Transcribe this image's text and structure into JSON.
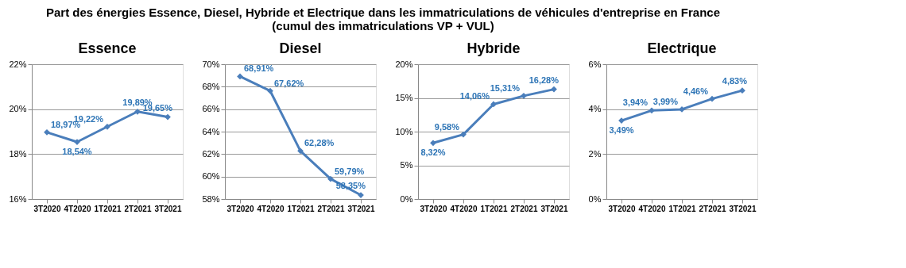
{
  "chart_data": [
    {
      "type": "line",
      "title": "Essence",
      "annotations": [
        "Part des énergies Essence, Diesel, Hybride et Electrique dans les immatriculations de véhicules d'entreprise en France",
        "(cumul des immatriculations VP + VUL)"
      ],
      "categories": [
        "3T2020",
        "4T2020",
        "1T2021",
        "2T2021",
        "3T2021"
      ],
      "series": [
        {
          "color": "#4a7ebb",
          "values": [
            18.97,
            18.54,
            19.22,
            19.89,
            19.65
          ],
          "value_labels": [
            "18,97%",
            "18,54%",
            "19,22%",
            "19,89%",
            "19,65%"
          ]
        }
      ],
      "ylim": [
        16,
        22
      ],
      "yticks": [
        {
          "value": 16,
          "label": "16%"
        },
        {
          "value": 18,
          "label": "18%"
        },
        {
          "value": 20,
          "label": "20%"
        },
        {
          "value": 22,
          "label": "22%"
        }
      ],
      "grid": "y",
      "marker": "diamond",
      "line_style": "solid",
      "legend": false
    },
    {
      "type": "line",
      "title": "Diesel",
      "categories": [
        "3T2020",
        "4T2020",
        "1T2021",
        "2T2021",
        "3T2021"
      ],
      "series": [
        {
          "color": "#4a7ebb",
          "values": [
            68.91,
            67.62,
            62.28,
            59.79,
            58.35
          ],
          "value_labels": [
            "68,91%",
            "67,62%",
            "62,28%",
            "59,79%",
            "58,35%"
          ]
        }
      ],
      "ylim": [
        58,
        70
      ],
      "yticks": [
        {
          "value": 58,
          "label": "58%"
        },
        {
          "value": 60,
          "label": "60%"
        },
        {
          "value": 62,
          "label": "62%"
        },
        {
          "value": 64,
          "label": "64%"
        },
        {
          "value": 66,
          "label": "66%"
        },
        {
          "value": 68,
          "label": "68%"
        },
        {
          "value": 70,
          "label": "70%"
        }
      ],
      "grid": "y",
      "marker": "diamond",
      "line_style": "solid",
      "legend": false
    },
    {
      "type": "line",
      "title": "Hybride",
      "categories": [
        "3T2020",
        "4T2020",
        "1T2021",
        "2T2021",
        "3T2021"
      ],
      "series": [
        {
          "color": "#4a7ebb",
          "values": [
            8.32,
            9.58,
            14.06,
            15.31,
            16.28
          ],
          "value_labels": [
            "8,32%",
            "9,58%",
            "14,06%",
            "15,31%",
            "16,28%"
          ]
        }
      ],
      "ylim": [
        0,
        20
      ],
      "yticks": [
        {
          "value": 0,
          "label": "0%"
        },
        {
          "value": 5,
          "label": "5%"
        },
        {
          "value": 10,
          "label": "10%"
        },
        {
          "value": 15,
          "label": "15%"
        },
        {
          "value": 20,
          "label": "20%"
        }
      ],
      "grid": "y",
      "marker": "diamond",
      "line_style": "solid",
      "legend": false
    },
    {
      "type": "line",
      "title": "Electrique",
      "categories": [
        "3T2020",
        "4T2020",
        "1T2021",
        "2T2021",
        "3T2021"
      ],
      "series": [
        {
          "color": "#4a7ebb",
          "values": [
            3.49,
            3.94,
            3.99,
            4.46,
            4.83
          ],
          "value_labels": [
            "3,49%",
            "3,94%",
            "3,99%",
            "4,46%",
            "4,83%"
          ]
        }
      ],
      "ylim": [
        0,
        6
      ],
      "yticks": [
        {
          "value": 0,
          "label": "0%"
        },
        {
          "value": 2,
          "label": "2%"
        },
        {
          "value": 4,
          "label": "4%"
        },
        {
          "value": 6,
          "label": "6%"
        }
      ],
      "grid": "y",
      "marker": "diamond",
      "line_style": "solid",
      "legend": false
    }
  ]
}
